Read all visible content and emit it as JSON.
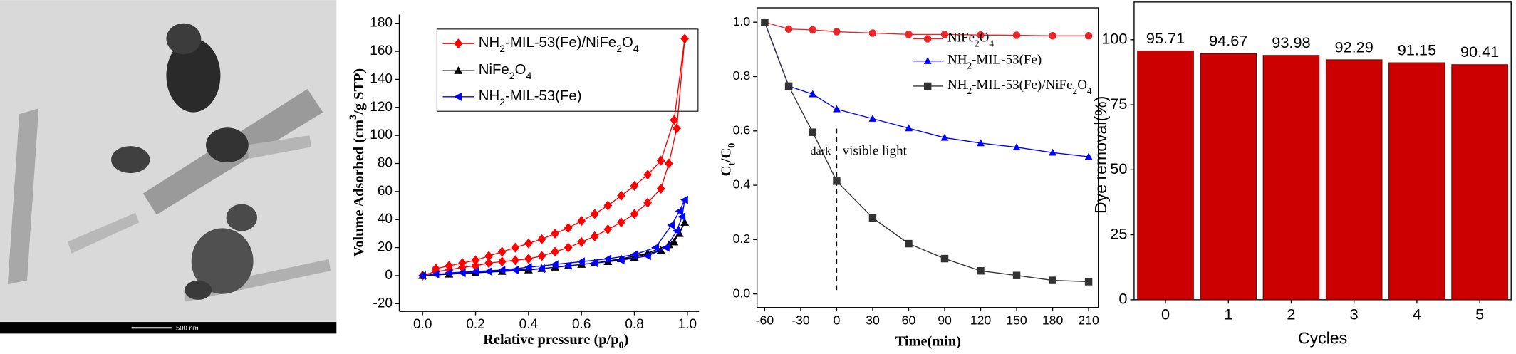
{
  "image": {
    "scale_bar": "500 nm"
  },
  "chart_data": [
    {
      "type": "line",
      "x_label": "Relative pressure (p/p0)",
      "y_label": "Volume Adsorbed (cm3/g STP)",
      "xlim": [
        -0.088,
        1.044
      ],
      "ylim": [
        -25.5,
        186.2
      ],
      "xticks": [
        {
          "value": 0,
          "label": "0.0"
        },
        {
          "value": 0.2,
          "label": "0.2"
        },
        {
          "value": 0.4,
          "label": "0.4"
        },
        {
          "value": 0.6,
          "label": "0.6"
        },
        {
          "value": 0.8,
          "label": "0.8"
        },
        {
          "value": 1,
          "label": "1.0"
        }
      ],
      "yticks": [
        -20,
        0,
        20,
        40,
        60,
        80,
        100,
        120,
        140,
        160,
        180
      ],
      "series": [
        {
          "name": "NH2-MIL-53(Fe)/NiFe2O4",
          "color": "#ff0000",
          "marker": "diamond",
          "x": [
            0,
            0.05,
            0.1,
            0.15,
            0.2,
            0.25,
            0.3,
            0.35,
            0.4,
            0.45,
            0.5,
            0.55,
            0.6,
            0.65,
            0.7,
            0.75,
            0.8,
            0.85,
            0.9,
            0.93,
            0.96,
            0.99,
            0.95,
            0.9,
            0.85,
            0.8,
            0.75,
            0.7,
            0.65,
            0.6,
            0.55,
            0.5,
            0.45,
            0.4,
            0.35,
            0.3,
            0.25,
            0.2,
            0.15,
            0.1,
            0.05
          ],
          "values": [
            0,
            3,
            4,
            6,
            7,
            9,
            10,
            11,
            12,
            14,
            17,
            20,
            24,
            28,
            33,
            38,
            44,
            52,
            62,
            80,
            105,
            169,
            111,
            82,
            72,
            64,
            57,
            50,
            44,
            39,
            34,
            30,
            26,
            23,
            20,
            17,
            14,
            11,
            9,
            7,
            5
          ]
        },
        {
          "name": "NiFe2O4",
          "color": "#000000",
          "marker": "triangle",
          "x": [
            0,
            0.1,
            0.2,
            0.3,
            0.4,
            0.5,
            0.6,
            0.7,
            0.8,
            0.9,
            0.95,
            0.99,
            0.97,
            0.93,
            0.85,
            0.75,
            0.65,
            0.55,
            0.45
          ],
          "values": [
            0,
            1,
            2,
            3,
            4,
            6,
            8,
            10,
            13,
            18,
            24,
            38,
            30,
            22,
            16,
            12,
            9,
            7,
            5
          ]
        },
        {
          "name": "NH2-MIL-53(Fe)",
          "color": "#0000ff",
          "marker": "triangle-left",
          "x": [
            0,
            0.05,
            0.15,
            0.25,
            0.35,
            0.45,
            0.55,
            0.65,
            0.75,
            0.85,
            0.92,
            0.96,
            0.98,
            0.99,
            0.97,
            0.94,
            0.88,
            0.8,
            0.7,
            0.6,
            0.5,
            0.4,
            0.3,
            0.2,
            0.1
          ],
          "values": [
            0,
            1,
            2,
            3,
            4,
            5,
            7,
            9,
            11,
            14,
            20,
            32,
            42,
            54,
            46,
            36,
            20,
            15,
            12,
            10,
            8,
            6,
            4,
            3,
            2
          ]
        }
      ]
    },
    {
      "type": "line",
      "x_label": "Time(min)",
      "y_label": "Ct/C0",
      "annotations": [
        "dark",
        "visible light"
      ],
      "vline": 0,
      "xlim": [
        -66.4,
        218.1
      ],
      "ylim": [
        -0.05,
        1.053
      ],
      "xticks": [
        -60,
        -30,
        0,
        30,
        60,
        90,
        120,
        150,
        180,
        210
      ],
      "yticks": [
        {
          "value": 0,
          "label": "0.0"
        },
        {
          "value": 0.2,
          "label": "0.2"
        },
        {
          "value": 0.4,
          "label": "0.4"
        },
        {
          "value": 0.6,
          "label": "0.6"
        },
        {
          "value": 0.8,
          "label": "0.8"
        },
        {
          "value": 1,
          "label": "1.0"
        }
      ],
      "series": [
        {
          "name": "NiFe2O4",
          "color": "#e8262a",
          "marker": "circle",
          "x": [
            -60,
            -40,
            -20,
            0,
            30,
            60,
            90,
            120,
            150,
            180,
            210
          ],
          "values": [
            1.0,
            0.975,
            0.972,
            0.965,
            0.96,
            0.955,
            0.955,
            0.953,
            0.952,
            0.95,
            0.95
          ]
        },
        {
          "name": "NH2-MIL-53(Fe)",
          "color": "#0000ff",
          "marker": "triangle",
          "x": [
            -60,
            -40,
            -20,
            0,
            30,
            60,
            90,
            120,
            150,
            180,
            210
          ],
          "values": [
            1.0,
            0.765,
            0.735,
            0.68,
            0.645,
            0.61,
            0.575,
            0.555,
            0.54,
            0.52,
            0.505
          ]
        },
        {
          "name": "NH2-MIL-53(Fe)/NiFe2O4",
          "color": "#333333",
          "marker": "square",
          "x": [
            -60,
            -40,
            -20,
            0,
            30,
            60,
            90,
            120,
            150,
            180,
            210
          ],
          "values": [
            1.0,
            0.765,
            0.595,
            0.415,
            0.28,
            0.185,
            0.13,
            0.085,
            0.068,
            0.05,
            0.045
          ]
        }
      ]
    },
    {
      "type": "bar",
      "x_label": "Cycles",
      "y_label": "Dye removal(%)",
      "categories": [
        "0",
        "1",
        "2",
        "3",
        "4",
        "5"
      ],
      "values": [
        95.71,
        94.67,
        93.98,
        92.29,
        91.15,
        90.41
      ],
      "color": "#cc0000",
      "ylim": [
        0,
        114.5
      ],
      "yticks": [
        0,
        25,
        50,
        75,
        100
      ]
    }
  ]
}
